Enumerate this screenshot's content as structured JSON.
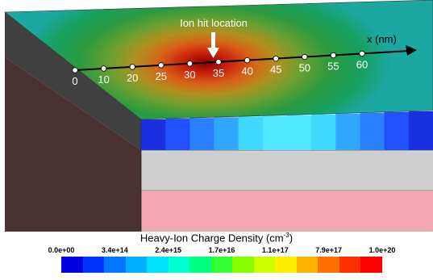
{
  "annotation": {
    "hit_label": "Ion hit location"
  },
  "axis": {
    "label": "x (nm)",
    "ticks": [
      "0",
      "10",
      "20",
      "25",
      "30",
      "35",
      "40",
      "45",
      "50",
      "55",
      "60"
    ]
  },
  "legend": {
    "title": "Heavy-Ion Charge Density (cm",
    "title_sup": "-3",
    "title_end": ")",
    "tick_labels": [
      "0.0e+00",
      "3.4e+14",
      "2.4e+15",
      "1.7e+16",
      "1.1e+17",
      "7.9e+17",
      "1.0e+20"
    ],
    "colors": [
      "#0000e0",
      "#0033ff",
      "#0077ff",
      "#00b0ff",
      "#00e0ff",
      "#00ffd0",
      "#00ff80",
      "#33ff33",
      "#88ff00",
      "#ccff00",
      "#ffee00",
      "#ffb000",
      "#ff7000",
      "#ff3000",
      "#ff0000"
    ]
  },
  "stripe_colors": [
    "#1a2fe0",
    "#2050ff",
    "#2a80ff",
    "#30a8ff",
    "#40d8ff",
    "#50e8ff",
    "#50e8ff",
    "#40d8ff",
    "#30a8ff",
    "#2a80ff",
    "#2050ff",
    "#1a2fe0"
  ]
}
